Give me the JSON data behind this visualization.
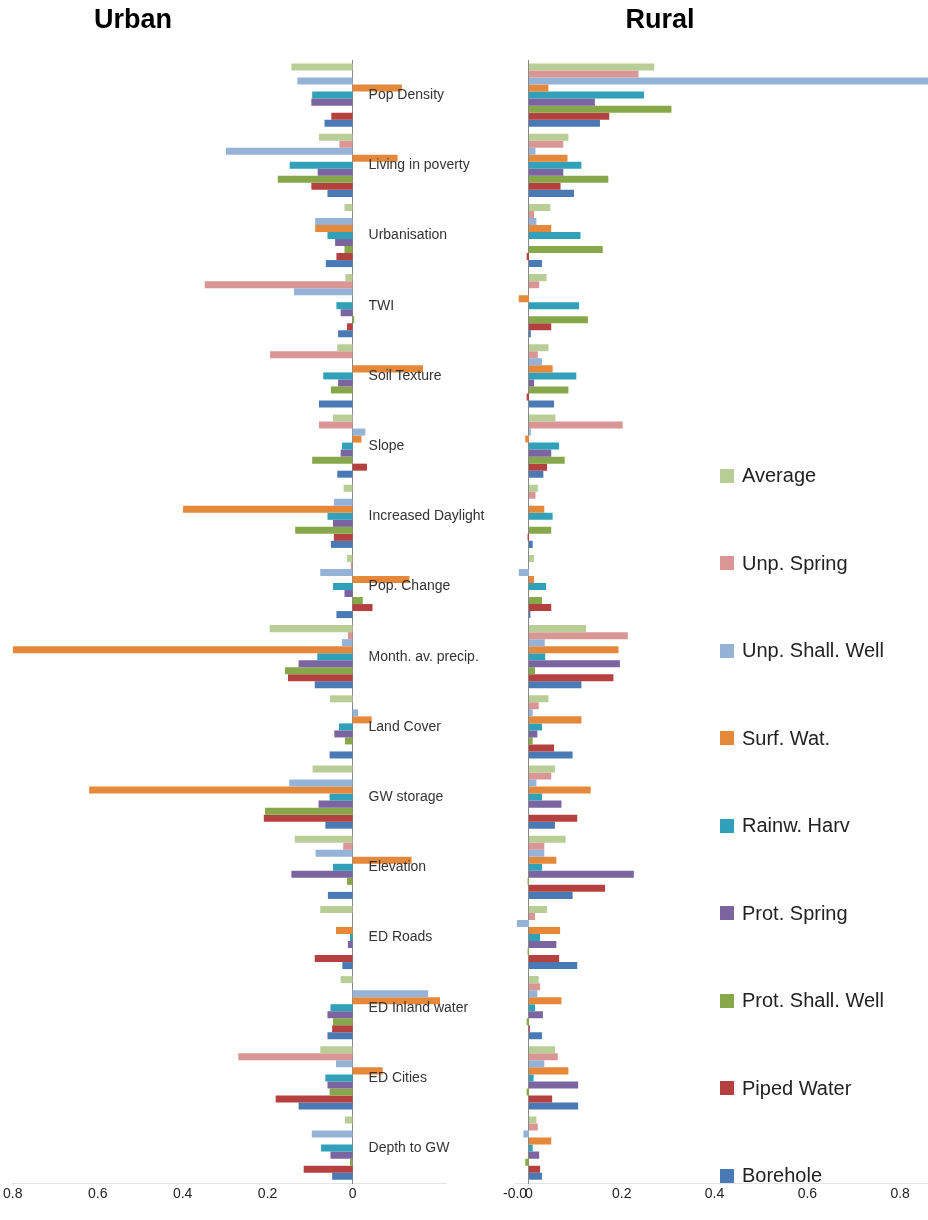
{
  "chart_data": [
    {
      "type": "bar",
      "orientation": "horizontal",
      "title": "Urban",
      "grid": false,
      "legend": false,
      "categories": [
        "Pop Density",
        "Living in poverty",
        "Urbanisation",
        "TWI",
        "Soil Texture",
        "Slope",
        "Increased Daylight",
        "Pop. Change",
        "Month. av. precip.",
        "Land Cover",
        "GW storage",
        "Elevation",
        "ED Roads",
        "ED Inland water",
        "ED Cities",
        "Depth to GW"
      ],
      "xlim": [
        0.8,
        -0.22
      ],
      "xticks": [
        0.8,
        0.6,
        0.4,
        0.2,
        0
      ],
      "series": [
        {
          "color": "#b9cd96",
          "values": [
            0.144,
            0.079,
            0.019,
            0.017,
            0.036,
            0.046,
            0.021,
            0.013,
            0.195,
            0.053,
            0.094,
            0.136,
            0.076,
            0.028,
            0.076,
            0.018
          ]
        },
        {
          "color": "#d99694",
          "values": [
            0,
            0.031,
            0,
            0.348,
            0.194,
            0.079,
            0,
            0.004,
            0.011,
            0,
            0,
            0.022,
            0,
            0,
            0.269,
            0
          ]
        },
        {
          "color": "#95b3d7",
          "values": [
            0.13,
            0.298,
            0.088,
            0.138,
            0,
            -0.03,
            0.044,
            0.076,
            0.025,
            -0.013,
            0.149,
            0.087,
            0,
            -0.178,
            0.039,
            0.096
          ]
        },
        {
          "color": "#e6883a",
          "values": [
            -0.116,
            -0.106,
            0.088,
            0,
            -0.166,
            -0.021,
            0.399,
            -0.134,
            0.8,
            -0.045,
            0.62,
            -0.139,
            0.039,
            -0.206,
            -0.071,
            0
          ]
        },
        {
          "color": "#31a0b9",
          "values": [
            0.095,
            0.148,
            0.059,
            0.038,
            0.069,
            0.025,
            0.059,
            0.046,
            0.083,
            0.032,
            0.054,
            0.046,
            0.006,
            0.052,
            0.064,
            0.074
          ]
        },
        {
          "color": "#7b64a0",
          "values": [
            0.097,
            0.082,
            0.041,
            0.028,
            0.034,
            0.028,
            0.046,
            0.019,
            0.127,
            0.043,
            0.08,
            0.144,
            0.011,
            0.059,
            0.059,
            0.052
          ]
        },
        {
          "color": "#86a84a",
          "values": [
            0,
            0.176,
            0.019,
            -0.004,
            0.051,
            0.095,
            0.135,
            -0.024,
            0.159,
            0.018,
            0.206,
            0.013,
            0,
            0.046,
            0.054,
            0.006
          ]
        },
        {
          "color": "#b4403f",
          "values": [
            0.05,
            0.097,
            0.038,
            0.013,
            0,
            -0.034,
            0.044,
            -0.047,
            0.152,
            0,
            0.209,
            0,
            0.089,
            0.048,
            0.181,
            0.115
          ]
        },
        {
          "color": "#4a7ab5",
          "values": [
            0.066,
            0.059,
            0.063,
            0.034,
            0.079,
            0.036,
            0.051,
            0.038,
            0.089,
            0.054,
            0.064,
            0.058,
            0.024,
            0.059,
            0.127,
            0.048
          ]
        }
      ]
    },
    {
      "type": "bar",
      "orientation": "horizontal",
      "title": "Rural",
      "tick_labels": "x",
      "legend": "right",
      "categories": [
        null,
        null,
        null,
        null,
        null,
        null,
        null,
        null,
        null,
        null,
        null,
        null,
        null,
        null,
        null,
        null
      ],
      "xlim": [
        -0.03,
        0.86
      ],
      "xticks": [
        {
          "value": -0.03,
          "label": "-0.0"
        },
        0,
        0.2,
        0.4,
        0.6,
        0.8
      ],
      "series": [
        {
          "name": "Average",
          "color": "#b9cd96",
          "values": [
            0.27,
            0.085,
            0.046,
            0.038,
            0.042,
            0.057,
            0.019,
            0.011,
            0.123,
            0.042,
            0.056,
            0.079,
            0.039,
            0.021,
            0.056,
            0.016
          ]
        },
        {
          "name": "Unp. Spring",
          "color": "#d99694",
          "values": [
            0.236,
            0.074,
            0.011,
            0.022,
            0.019,
            0.202,
            0.014,
            0,
            0.213,
            0.021,
            0.048,
            0.033,
            0.013,
            0.024,
            0.062,
            0.019
          ]
        },
        {
          "name": "Unp. Shall. Well",
          "color": "#95b3d7",
          "values": [
            0.86,
            0.014,
            0.016,
            0,
            0.028,
            0.004,
            0,
            -0.022,
            0.034,
            0.008,
            0.016,
            0.033,
            -0.026,
            0.018,
            0.033,
            -0.012
          ]
        },
        {
          "name": "Surf. Wat.",
          "color": "#e6883a",
          "values": [
            0.042,
            0.083,
            0.048,
            -0.022,
            0.051,
            -0.008,
            0.033,
            0.011,
            0.193,
            0.113,
            0.133,
            0.059,
            0.067,
            0.07,
            0.085,
            0.048
          ]
        },
        {
          "name": "Rainw. Harv",
          "color": "#31a0b9",
          "values": [
            0.248,
            0.113,
            0.111,
            0.108,
            0.102,
            0.065,
            0.051,
            0.037,
            0.035,
            0.028,
            0.028,
            0.028,
            0.024,
            0.013,
            0.01,
            0.008
          ]
        },
        {
          "name": "Prot. Spring",
          "color": "#7b64a0",
          "values": [
            0.142,
            0.074,
            0,
            0,
            0.011,
            0.048,
            0,
            0,
            0.196,
            0.018,
            0.07,
            0.226,
            0.059,
            0.03,
            0.106,
            0.022
          ]
        },
        {
          "name": "Prot. Shall. Well",
          "color": "#86a84a",
          "values": [
            0.307,
            0.171,
            0.159,
            0.127,
            0.085,
            0.077,
            0.048,
            0.028,
            0.013,
            0.008,
            0,
            -0.003,
            -0.003,
            -0.005,
            -0.005,
            -0.008
          ]
        },
        {
          "name": "Piped Water",
          "color": "#b4403f",
          "values": [
            0.173,
            0.068,
            -0.005,
            0.048,
            -0.005,
            0.039,
            -0.003,
            0.048,
            0.182,
            0.054,
            0.104,
            0.164,
            0.065,
            0.002,
            0.05,
            0.024
          ]
        },
        {
          "name": "Borehole",
          "color": "#4a7ab5",
          "values": [
            0.153,
            0.097,
            0.028,
            0.004,
            0.054,
            0.031,
            0.008,
            0.003,
            0.113,
            0.094,
            0.056,
            0.094,
            0.104,
            0.028,
            0.106,
            0.028
          ]
        }
      ]
    }
  ]
}
